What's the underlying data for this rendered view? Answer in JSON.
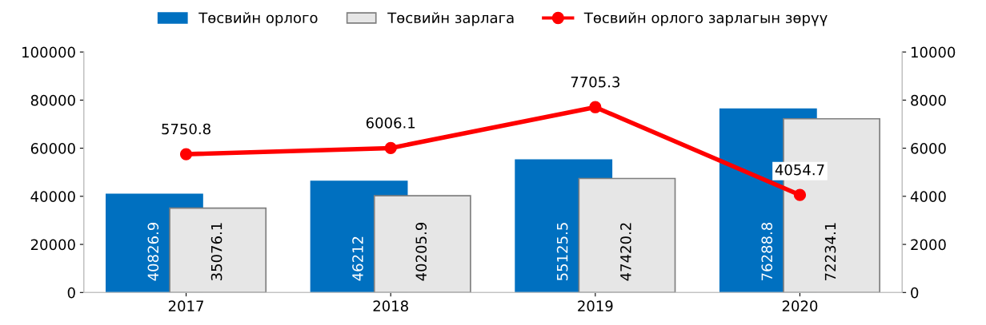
{
  "chart_data": {
    "type": "bar",
    "categories": [
      "2017",
      "2018",
      "2019",
      "2020"
    ],
    "series": [
      {
        "name": "Төсвийн орлого",
        "color": "#0070c0",
        "values": [
          40826.9,
          46212,
          55125.5,
          76288.8
        ]
      },
      {
        "name": "Төсвийн зарлага",
        "color": "#e6e6e6",
        "values": [
          35076.1,
          40205.9,
          47420.2,
          72234.1
        ]
      },
      {
        "name": "Төсвийн орлого зарлагын зөрүү",
        "color": "#ff0000",
        "type": "line",
        "axis": "y2",
        "values": [
          5750.8,
          6006.1,
          7705.3,
          4054.7
        ]
      }
    ],
    "ylim": [
      0,
      100000
    ],
    "yticks": [
      0,
      20000,
      40000,
      60000,
      80000,
      100000
    ],
    "y2lim": [
      0,
      10000
    ],
    "y2ticks": [
      0,
      2000,
      4000,
      6000,
      8000,
      10000
    ],
    "data_labels": true,
    "legend": "top",
    "grid": false,
    "marker": "circle",
    "line_style": "solid"
  }
}
